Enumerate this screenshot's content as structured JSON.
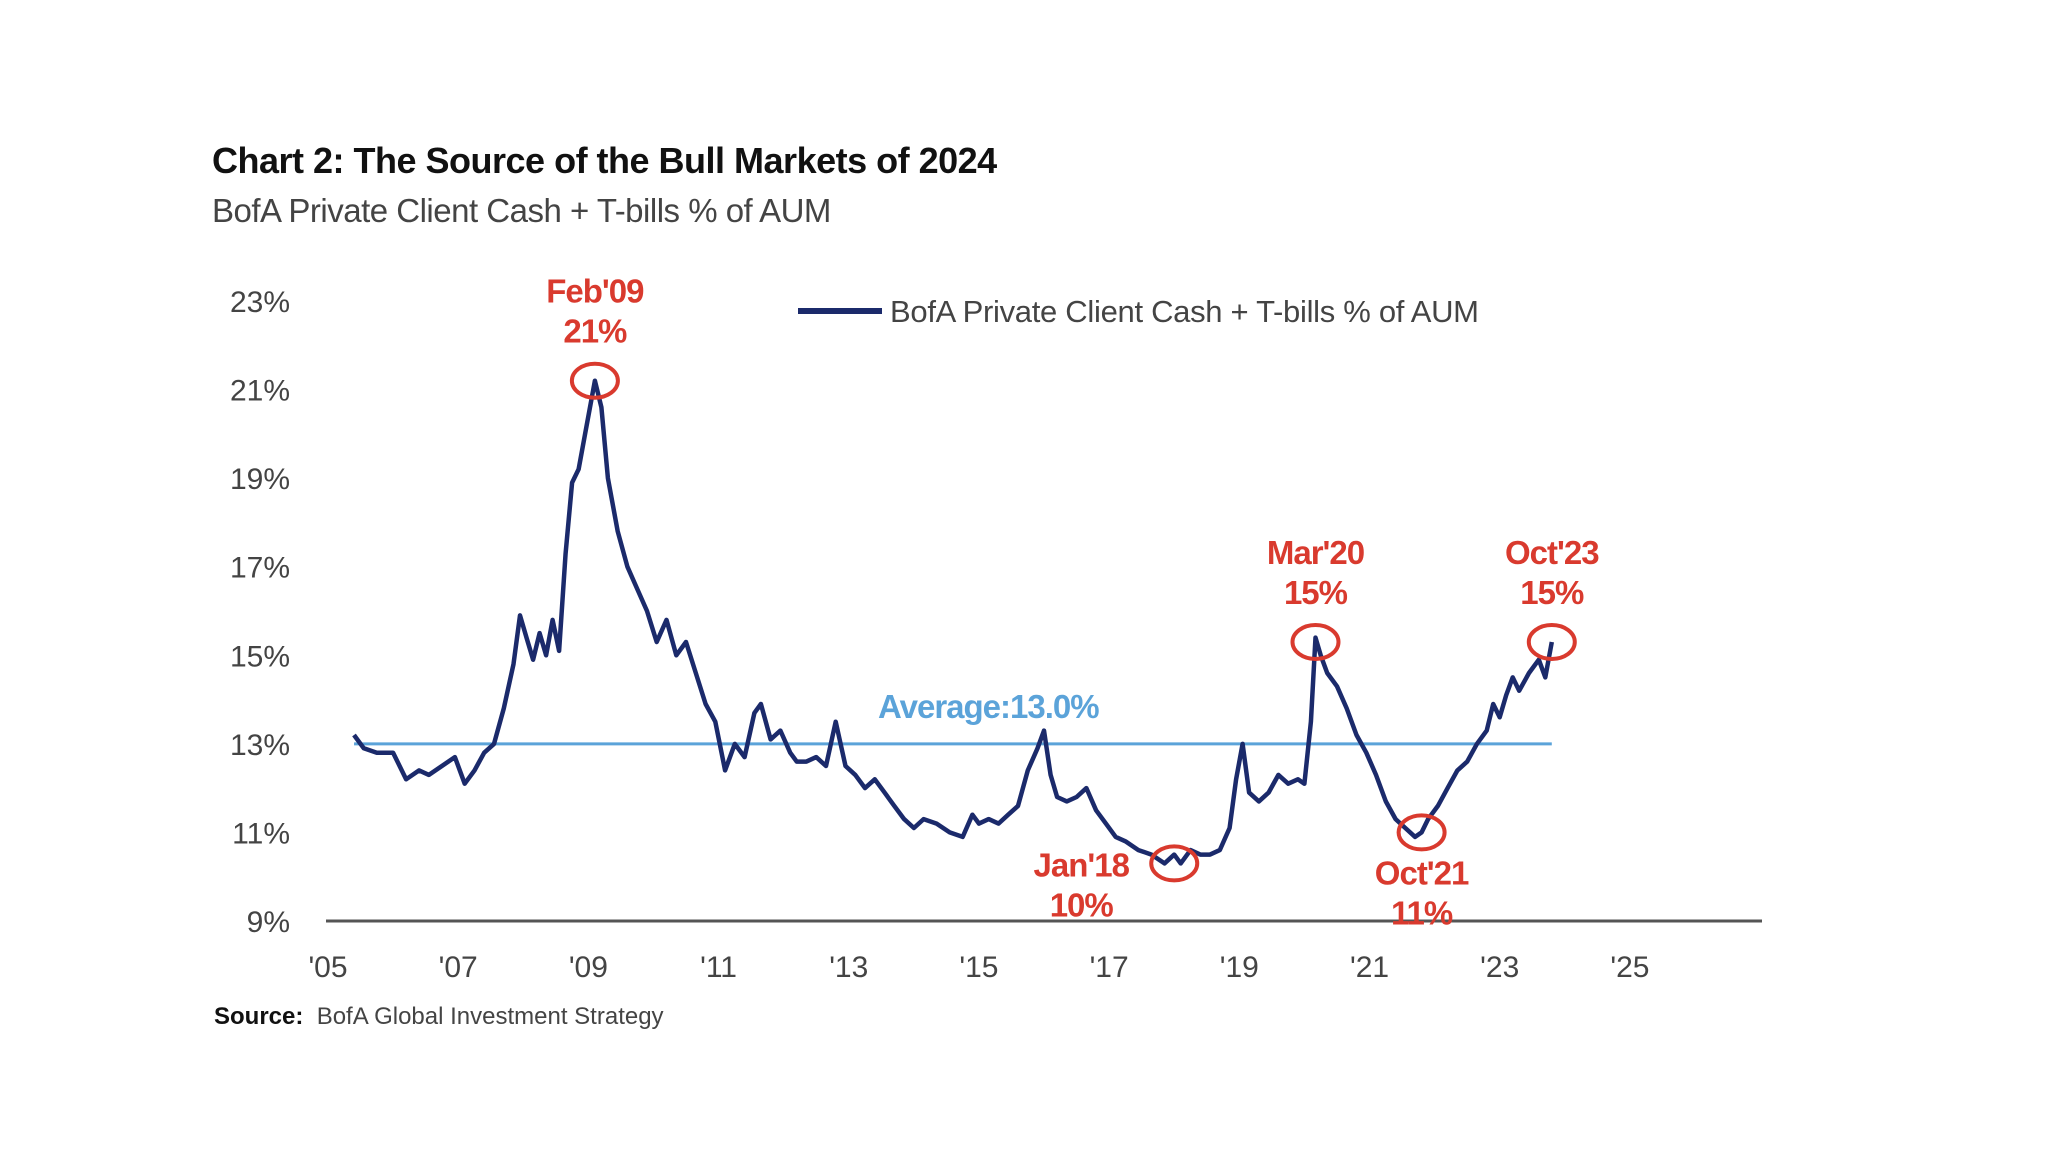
{
  "title": "Chart 2: The Source of the Bull Markets of 2024",
  "subtitle": "BofA Private Client Cash + T-bills % of AUM",
  "source_label": "Source:",
  "source_text": "BofA Global Investment Strategy",
  "colors": {
    "series": "#1b2a6b",
    "average": "#5ba3d9",
    "annotation": "#d93a2e",
    "axis": "#555555"
  },
  "chart_data": {
    "type": "line",
    "xlabel": "",
    "ylabel": "",
    "xlim": [
      2005,
      2026
    ],
    "ylim": [
      9,
      23
    ],
    "y_ticks": [
      9,
      11,
      13,
      15,
      17,
      19,
      21,
      23
    ],
    "y_tick_labels": [
      "9%",
      "11%",
      "13%",
      "15%",
      "17%",
      "19%",
      "21%",
      "23%"
    ],
    "x_ticks": [
      2005,
      2007,
      2009,
      2011,
      2013,
      2015,
      2017,
      2019,
      2021,
      2023,
      2025
    ],
    "x_tick_labels": [
      "'05",
      "'07",
      "'09",
      "'11",
      "'13",
      "'15",
      "'17",
      "'19",
      "'21",
      "'23",
      "'25"
    ],
    "grid": false,
    "legend_position": "top",
    "series": [
      {
        "name": "BofA Private Client Cash + T-bills % of AUM",
        "x": [
          2005.4,
          2005.55,
          2005.75,
          2006.0,
          2006.2,
          2006.4,
          2006.55,
          2006.75,
          2006.95,
          2007.1,
          2007.25,
          2007.4,
          2007.55,
          2007.7,
          2007.85,
          2007.95,
          2008.05,
          2008.15,
          2008.25,
          2008.35,
          2008.45,
          2008.55,
          2008.65,
          2008.75,
          2008.85,
          2008.95,
          2009.1,
          2009.2,
          2009.3,
          2009.45,
          2009.6,
          2009.75,
          2009.9,
          2010.05,
          2010.2,
          2010.35,
          2010.5,
          2010.65,
          2010.8,
          2010.95,
          2011.1,
          2011.25,
          2011.4,
          2011.55,
          2011.65,
          2011.8,
          2011.95,
          2012.1,
          2012.2,
          2012.35,
          2012.5,
          2012.65,
          2012.8,
          2012.95,
          2013.1,
          2013.25,
          2013.4,
          2013.55,
          2013.7,
          2013.85,
          2014.0,
          2014.15,
          2014.35,
          2014.55,
          2014.75,
          2014.9,
          2015.0,
          2015.15,
          2015.3,
          2015.45,
          2015.6,
          2015.75,
          2015.9,
          2016.0,
          2016.1,
          2016.2,
          2016.35,
          2016.5,
          2016.65,
          2016.8,
          2016.95,
          2017.1,
          2017.25,
          2017.45,
          2017.65,
          2017.85,
          2018.0,
          2018.1,
          2018.25,
          2018.4,
          2018.55,
          2018.7,
          2018.85,
          2018.95,
          2019.05,
          2019.15,
          2019.3,
          2019.45,
          2019.6,
          2019.75,
          2019.9,
          2020.0,
          2020.1,
          2020.17,
          2020.25,
          2020.35,
          2020.5,
          2020.65,
          2020.8,
          2020.95,
          2021.1,
          2021.25,
          2021.4,
          2021.55,
          2021.7,
          2021.8,
          2021.9,
          2022.05,
          2022.2,
          2022.35,
          2022.5,
          2022.65,
          2022.8,
          2022.9,
          2023.0,
          2023.1,
          2023.2,
          2023.3,
          2023.45,
          2023.6,
          2023.7,
          2023.8
        ],
        "values": [
          13.2,
          12.9,
          12.8,
          12.8,
          12.2,
          12.4,
          12.3,
          12.5,
          12.7,
          12.1,
          12.4,
          12.8,
          13.0,
          13.8,
          14.8,
          15.9,
          15.4,
          14.9,
          15.5,
          15.0,
          15.8,
          15.1,
          17.3,
          18.9,
          19.2,
          20.0,
          21.2,
          20.6,
          19.0,
          17.8,
          17.0,
          16.5,
          16.0,
          15.3,
          15.8,
          15.0,
          15.3,
          14.6,
          13.9,
          13.5,
          12.4,
          13.0,
          12.7,
          13.7,
          13.9,
          13.1,
          13.3,
          12.8,
          12.6,
          12.6,
          12.7,
          12.5,
          13.5,
          12.5,
          12.3,
          12.0,
          12.2,
          11.9,
          11.6,
          11.3,
          11.1,
          11.3,
          11.2,
          11.0,
          10.9,
          11.4,
          11.2,
          11.3,
          11.2,
          11.4,
          11.6,
          12.4,
          12.9,
          13.3,
          12.3,
          11.8,
          11.7,
          11.8,
          12.0,
          11.5,
          11.2,
          10.9,
          10.8,
          10.6,
          10.5,
          10.3,
          10.5,
          10.3,
          10.6,
          10.5,
          10.5,
          10.6,
          11.1,
          12.2,
          13.0,
          11.9,
          11.7,
          11.9,
          12.3,
          12.1,
          12.2,
          12.1,
          13.5,
          15.4,
          15.0,
          14.6,
          14.3,
          13.8,
          13.2,
          12.8,
          12.3,
          11.7,
          11.3,
          11.1,
          10.9,
          11.0,
          11.3,
          11.6,
          12.0,
          12.4,
          12.6,
          13.0,
          13.3,
          13.9,
          13.6,
          14.1,
          14.5,
          14.2,
          14.6,
          14.9,
          14.5,
          15.3
        ]
      }
    ],
    "average": {
      "value": 13.0,
      "label": "Average:13.0%"
    },
    "annotations": [
      {
        "label": "Feb'09",
        "value_label": "21%",
        "x": 2009.1,
        "y": 21.2,
        "label_side": "above"
      },
      {
        "label": "Jan'18",
        "value_label": "10%",
        "x": 2018.0,
        "y": 10.3,
        "label_side": "left-below"
      },
      {
        "label": "Mar'20",
        "value_label": "15%",
        "x": 2020.17,
        "y": 15.3,
        "label_side": "above"
      },
      {
        "label": "Oct'21",
        "value_label": "11%",
        "x": 2021.8,
        "y": 11.0,
        "label_side": "below"
      },
      {
        "label": "Oct'23",
        "value_label": "15%",
        "x": 2023.8,
        "y": 15.3,
        "label_side": "above"
      }
    ]
  }
}
